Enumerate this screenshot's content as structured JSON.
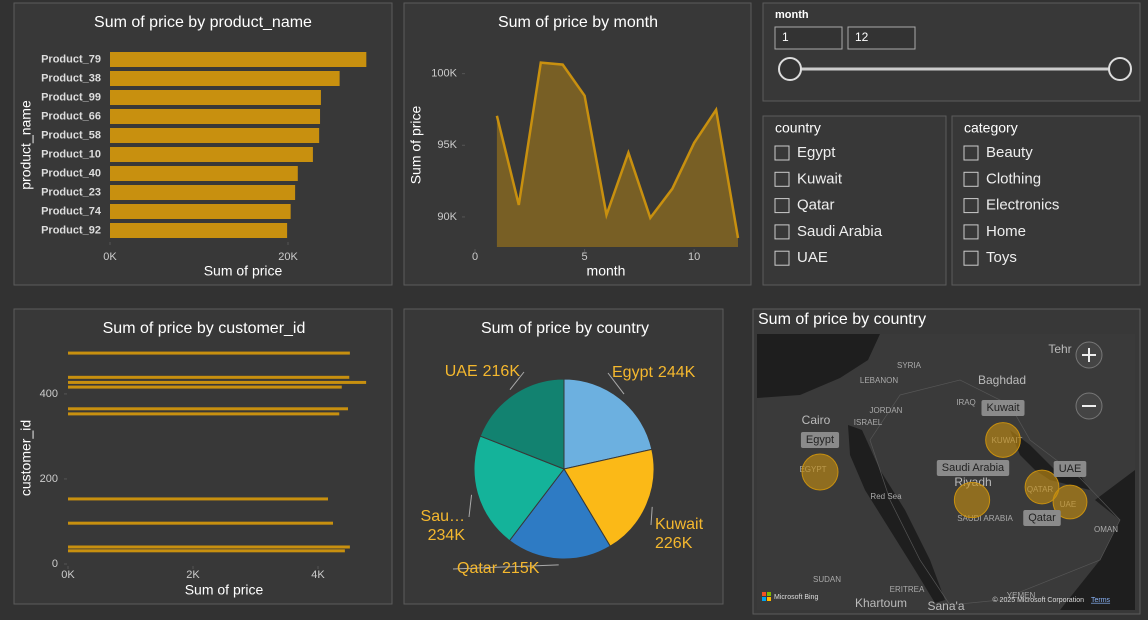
{
  "chart_data": [
    {
      "type": "bar",
      "title": "Sum of price by product_name",
      "x_label": "Sum of price",
      "y_label": "product_name",
      "categories": [
        "Product_79",
        "Product_38",
        "Product_99",
        "Product_66",
        "Product_58",
        "Product_10",
        "Product_40",
        "Product_23",
        "Product_74",
        "Product_92"
      ],
      "values": [
        28800,
        25800,
        23700,
        23600,
        23500,
        22800,
        21100,
        20800,
        20300,
        19900
      ],
      "color": "#c8900f",
      "xlim": [
        0,
        30000
      ],
      "xticks": [
        {
          "value": 0,
          "label": "0K"
        },
        {
          "value": 20000,
          "label": "20K"
        }
      ]
    },
    {
      "type": "area",
      "title": "Sum of price by month",
      "x_label": "month",
      "y_label": "Sum of price",
      "x": [
        1,
        2,
        3,
        4,
        5,
        6,
        7,
        8,
        9,
        10,
        11,
        12
      ],
      "values": [
        97060,
        90840,
        100770,
        100630,
        98460,
        90140,
        94480,
        89930,
        91960,
        95170,
        97480,
        88530
      ],
      "color": "#c8900f",
      "xlim": [
        0,
        12
      ],
      "ylim": [
        87900,
        102000
      ],
      "xticks": [
        0,
        5,
        10
      ],
      "yticks": [
        {
          "value": 90000,
          "label": "90K"
        },
        {
          "value": 95000,
          "label": "95K"
        },
        {
          "value": 100000,
          "label": "100K"
        }
      ]
    },
    {
      "type": "bar",
      "title": "Sum of price by customer_id",
      "x_label": "Sum of price",
      "y_label": "customer_id",
      "y": [
        496,
        439,
        427,
        416,
        365,
        353,
        153,
        96,
        40,
        31
      ],
      "values": [
        4510,
        4500,
        4770,
        4380,
        4480,
        4340,
        4160,
        4240,
        4510,
        4430
      ],
      "color": "#c8900f",
      "xlim": [
        0,
        4800
      ],
      "ylim": [
        0,
        515
      ],
      "xticks": [
        {
          "value": 0,
          "label": "0K"
        },
        {
          "value": 2000,
          "label": "2K"
        },
        {
          "value": 4000,
          "label": "4K"
        }
      ],
      "yticks": [
        0,
        200,
        400
      ]
    },
    {
      "type": "pie",
      "title": "Sum of price by country",
      "categories": [
        "Egypt",
        "Kuwait",
        "Qatar",
        "Sau…",
        "UAE"
      ],
      "values": [
        244000,
        226000,
        215000,
        234000,
        216000
      ],
      "value_labels": [
        "244K",
        "226K",
        "215K",
        "234K",
        "216K"
      ],
      "colors": [
        "#6cb0e0",
        "#fbb917",
        "#2e7bc4",
        "#14b39a",
        "#128270"
      ]
    },
    {
      "type": "map",
      "title": "Sum of price by country",
      "categories": [
        "Egypt",
        "Kuwait",
        "Saudi Arabia",
        "UAE",
        "Qatar"
      ],
      "values": [
        244000,
        226000,
        234000,
        216000,
        215000
      ],
      "color": "#c8900f",
      "place_labels": [
        "SYRIA",
        "LEBANON",
        "Baghdad",
        "IRAQ",
        "JORDAN",
        "ISRAEL",
        "Cairo",
        "EGYPT",
        "KUWAIT",
        "Red Sea",
        "Riyadh",
        "SAUDI ARABIA",
        "QATAR",
        "UAE",
        "OMAN",
        "SUDAN",
        "ERITREA",
        "YEMEN",
        "Khartoum",
        "Sana'a",
        "Tehr"
      ],
      "attribution": "Microsoft Bing",
      "copyright": "© 2025 Microsoft Corporation",
      "terms": "Terms"
    }
  ],
  "slicers": {
    "month": {
      "title": "month",
      "from": "1",
      "to": "12"
    },
    "country": {
      "title": "country",
      "items": [
        "Egypt",
        "Kuwait",
        "Qatar",
        "Saudi Arabia",
        "UAE"
      ]
    },
    "category": {
      "title": "category",
      "items": [
        "Beauty",
        "Clothing",
        "Electronics",
        "Home",
        "Toys"
      ]
    }
  }
}
